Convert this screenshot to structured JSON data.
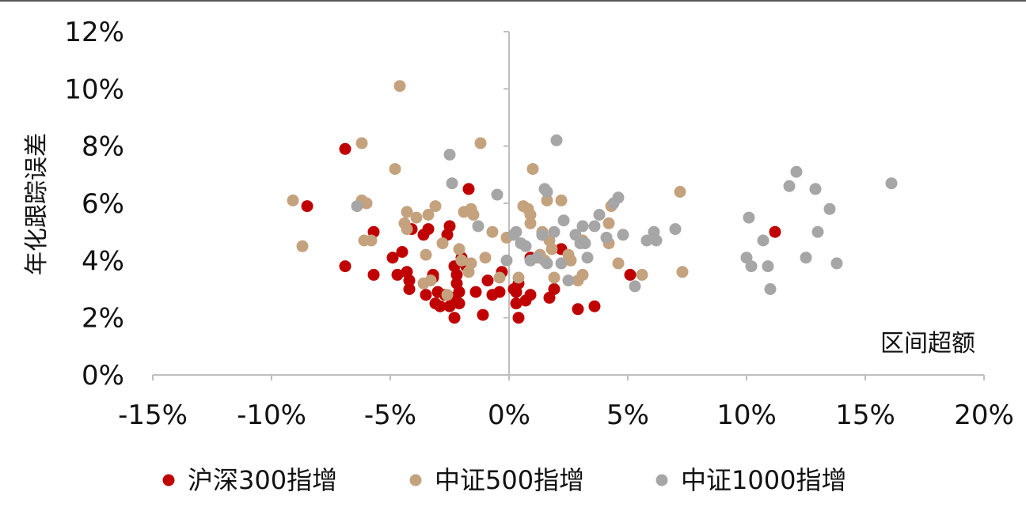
{
  "chart_data": {
    "type": "scatter",
    "title": "",
    "xlabel": "区间超额",
    "ylabel": "年化跟踪误差",
    "xlim": [
      -0.15,
      0.2
    ],
    "ylim": [
      0,
      0.12
    ],
    "x_ticks": [
      "-15%",
      "-10%",
      "-5%",
      "0%",
      "5%",
      "10%",
      "15%",
      "20%"
    ],
    "y_ticks": [
      "0%",
      "2%",
      "4%",
      "6%",
      "8%",
      "10%",
      "12%"
    ],
    "grid": false,
    "legend_position": "bottom",
    "series": [
      {
        "name": "沪深300指增",
        "color": "#c00000",
        "points": [
          [
            -0.085,
            0.059
          ],
          [
            -0.069,
            0.079
          ],
          [
            -0.069,
            0.038
          ],
          [
            -0.057,
            0.05
          ],
          [
            -0.057,
            0.035
          ],
          [
            -0.049,
            0.041
          ],
          [
            -0.047,
            0.035
          ],
          [
            -0.045,
            0.043
          ],
          [
            -0.043,
            0.036
          ],
          [
            -0.042,
            0.033
          ],
          [
            -0.042,
            0.03
          ],
          [
            -0.041,
            0.051
          ],
          [
            -0.036,
            0.049
          ],
          [
            -0.034,
            0.051
          ],
          [
            -0.032,
            0.034
          ],
          [
            -0.035,
            0.028
          ],
          [
            -0.032,
            0.035
          ],
          [
            -0.031,
            0.025
          ],
          [
            -0.03,
            0.029
          ],
          [
            -0.029,
            0.024
          ],
          [
            -0.027,
            0.028
          ],
          [
            -0.026,
            0.049
          ],
          [
            -0.025,
            0.052
          ],
          [
            -0.025,
            0.024
          ],
          [
            -0.024,
            0.027
          ],
          [
            -0.023,
            0.02
          ],
          [
            -0.023,
            0.038
          ],
          [
            -0.022,
            0.035
          ],
          [
            -0.022,
            0.032
          ],
          [
            -0.021,
            0.029
          ],
          [
            -0.021,
            0.025
          ],
          [
            -0.02,
            0.041
          ],
          [
            -0.018,
            0.038
          ],
          [
            -0.017,
            0.065
          ],
          [
            -0.014,
            0.029
          ],
          [
            -0.011,
            0.021
          ],
          [
            -0.009,
            0.033
          ],
          [
            -0.007,
            0.028
          ],
          [
            -0.004,
            0.029
          ],
          [
            -0.003,
            0.036
          ],
          [
            0.002,
            0.03
          ],
          [
            0.003,
            0.029
          ],
          [
            0.003,
            0.025
          ],
          [
            0.004,
            0.032
          ],
          [
            0.004,
            0.02
          ],
          [
            0.007,
            0.026
          ],
          [
            0.009,
            0.041
          ],
          [
            0.009,
            0.028
          ],
          [
            0.013,
            0.041
          ],
          [
            0.014,
            0.049
          ],
          [
            0.017,
            0.027
          ],
          [
            0.019,
            0.03
          ],
          [
            0.022,
            0.044
          ],
          [
            0.029,
            0.023
          ],
          [
            0.036,
            0.024
          ],
          [
            0.051,
            0.035
          ],
          [
            0.112,
            0.05
          ]
        ]
      },
      {
        "name": "中证500指增",
        "color": "#c4a27e",
        "points": [
          [
            -0.091,
            0.061
          ],
          [
            -0.087,
            0.045
          ],
          [
            -0.062,
            0.081
          ],
          [
            -0.062,
            0.061
          ],
          [
            -0.061,
            0.047
          ],
          [
            -0.06,
            0.06
          ],
          [
            -0.058,
            0.047
          ],
          [
            -0.048,
            0.072
          ],
          [
            -0.046,
            0.101
          ],
          [
            -0.044,
            0.053
          ],
          [
            -0.043,
            0.057
          ],
          [
            -0.043,
            0.051
          ],
          [
            -0.039,
            0.055
          ],
          [
            -0.036,
            0.032
          ],
          [
            -0.035,
            0.042
          ],
          [
            -0.034,
            0.056
          ],
          [
            -0.033,
            0.033
          ],
          [
            -0.031,
            0.059
          ],
          [
            -0.028,
            0.046
          ],
          [
            -0.026,
            0.028
          ],
          [
            -0.021,
            0.044
          ],
          [
            -0.02,
            0.04
          ],
          [
            -0.019,
            0.057
          ],
          [
            -0.017,
            0.036
          ],
          [
            -0.016,
            0.039
          ],
          [
            -0.016,
            0.058
          ],
          [
            -0.015,
            0.056
          ],
          [
            -0.012,
            0.081
          ],
          [
            -0.01,
            0.041
          ],
          [
            -0.007,
            0.05
          ],
          [
            -0.004,
            0.034
          ],
          [
            -0.001,
            0.048
          ],
          [
            0.002,
            0.049
          ],
          [
            0.004,
            0.034
          ],
          [
            0.006,
            0.059
          ],
          [
            0.008,
            0.058
          ],
          [
            0.009,
            0.056
          ],
          [
            0.009,
            0.053
          ],
          [
            0.01,
            0.072
          ],
          [
            0.012,
            0.041
          ],
          [
            0.013,
            0.042
          ],
          [
            0.014,
            0.05
          ],
          [
            0.015,
            0.04
          ],
          [
            0.016,
            0.061
          ],
          [
            0.017,
            0.047
          ],
          [
            0.018,
            0.044
          ],
          [
            0.019,
            0.034
          ],
          [
            0.022,
            0.061
          ],
          [
            0.025,
            0.042
          ],
          [
            0.026,
            0.04
          ],
          [
            0.029,
            0.033
          ],
          [
            0.031,
            0.035
          ],
          [
            0.031,
            0.047
          ],
          [
            0.042,
            0.053
          ],
          [
            0.042,
            0.046
          ],
          [
            0.043,
            0.059
          ],
          [
            0.046,
            0.039
          ],
          [
            0.056,
            0.035
          ],
          [
            0.072,
            0.064
          ],
          [
            0.073,
            0.036
          ]
        ]
      },
      {
        "name": "中证1000指增",
        "color": "#a6a6a6",
        "points": [
          [
            -0.064,
            0.059
          ],
          [
            -0.025,
            0.077
          ],
          [
            -0.024,
            0.067
          ],
          [
            -0.013,
            0.052
          ],
          [
            -0.005,
            0.063
          ],
          [
            -0.001,
            0.04
          ],
          [
            0.002,
            0.049
          ],
          [
            0.003,
            0.05
          ],
          [
            0.005,
            0.046
          ],
          [
            0.007,
            0.045
          ],
          [
            0.009,
            0.04
          ],
          [
            0.012,
            0.041
          ],
          [
            0.014,
            0.049
          ],
          [
            0.015,
            0.065
          ],
          [
            0.016,
            0.064
          ],
          [
            0.016,
            0.039
          ],
          [
            0.019,
            0.05
          ],
          [
            0.02,
            0.082
          ],
          [
            0.022,
            0.039
          ],
          [
            0.023,
            0.054
          ],
          [
            0.025,
            0.033
          ],
          [
            0.028,
            0.049
          ],
          [
            0.03,
            0.046
          ],
          [
            0.031,
            0.052
          ],
          [
            0.032,
            0.046
          ],
          [
            0.033,
            0.041
          ],
          [
            0.036,
            0.052
          ],
          [
            0.038,
            0.056
          ],
          [
            0.041,
            0.048
          ],
          [
            0.044,
            0.06
          ],
          [
            0.046,
            0.062
          ],
          [
            0.048,
            0.049
          ],
          [
            0.053,
            0.031
          ],
          [
            0.058,
            0.047
          ],
          [
            0.061,
            0.05
          ],
          [
            0.062,
            0.047
          ],
          [
            0.07,
            0.051
          ],
          [
            0.1,
            0.041
          ],
          [
            0.101,
            0.055
          ],
          [
            0.102,
            0.038
          ],
          [
            0.107,
            0.047
          ],
          [
            0.109,
            0.038
          ],
          [
            0.11,
            0.03
          ],
          [
            0.118,
            0.066
          ],
          [
            0.121,
            0.071
          ],
          [
            0.125,
            0.041
          ],
          [
            0.129,
            0.065
          ],
          [
            0.13,
            0.05
          ],
          [
            0.135,
            0.058
          ],
          [
            0.138,
            0.039
          ],
          [
            0.161,
            0.067
          ]
        ]
      }
    ]
  }
}
